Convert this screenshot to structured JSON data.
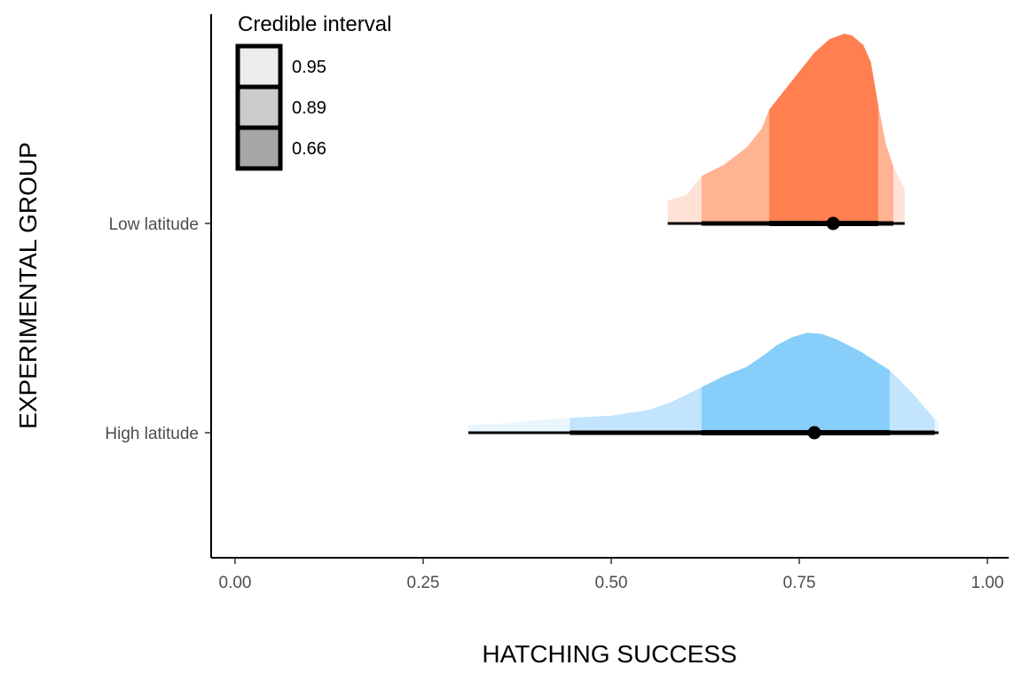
{
  "chart_data": {
    "type": "halfeye",
    "title": "",
    "xlabel": "HATCHING SUCCESS",
    "ylabel": "EXPERIMENTAL GROUP",
    "xlim": [
      -0.03,
      1.03
    ],
    "x_ticks": [
      0.0,
      0.25,
      0.5,
      0.75,
      1.0
    ],
    "x_tick_labels": [
      "0.00",
      "0.25",
      "0.50",
      "0.75",
      "1.00"
    ],
    "categories": [
      "Low latitude",
      "High latitude"
    ],
    "grid": false,
    "legend": {
      "title": "Credible interval",
      "placement": "top-left",
      "entries": [
        "0.95",
        "0.89",
        "0.66"
      ],
      "swatch_colors": [
        "#ececec",
        "#cbcbcb",
        "#a6a6a6"
      ]
    },
    "series": [
      {
        "category": "Low latitude",
        "color": "#ff7f50",
        "band_colors": [
          "#fde2d5",
          "#ffb393",
          "#ff7f50"
        ],
        "point": 0.795,
        "intervals": [
          {
            "level": "0.95",
            "low": 0.575,
            "high": 0.89
          },
          {
            "level": "0.89",
            "low": 0.62,
            "high": 0.875
          },
          {
            "level": "0.66",
            "low": 0.71,
            "high": 0.855
          }
        ],
        "density": [
          [
            0.575,
            0.12
          ],
          [
            0.6,
            0.15
          ],
          [
            0.62,
            0.25
          ],
          [
            0.65,
            0.31
          ],
          [
            0.68,
            0.4
          ],
          [
            0.7,
            0.5
          ],
          [
            0.71,
            0.6
          ],
          [
            0.73,
            0.7
          ],
          [
            0.75,
            0.8
          ],
          [
            0.77,
            0.9
          ],
          [
            0.79,
            0.97
          ],
          [
            0.81,
            1.0
          ],
          [
            0.82,
            0.99
          ],
          [
            0.835,
            0.94
          ],
          [
            0.845,
            0.85
          ],
          [
            0.855,
            0.62
          ],
          [
            0.865,
            0.42
          ],
          [
            0.875,
            0.3
          ],
          [
            0.89,
            0.18
          ]
        ]
      },
      {
        "category": "High latitude",
        "color": "#87cefa",
        "band_colors": [
          "#eaf6fe",
          "#c2e4fc",
          "#87cefa"
        ],
        "point": 0.77,
        "intervals": [
          {
            "level": "0.95",
            "low": 0.31,
            "high": 0.935
          },
          {
            "level": "0.89",
            "low": 0.445,
            "high": 0.93
          },
          {
            "level": "0.66",
            "low": 0.62,
            "high": 0.87
          }
        ],
        "density": [
          [
            0.31,
            0.07
          ],
          [
            0.36,
            0.08
          ],
          [
            0.4,
            0.11
          ],
          [
            0.445,
            0.13
          ],
          [
            0.5,
            0.15
          ],
          [
            0.55,
            0.2
          ],
          [
            0.58,
            0.27
          ],
          [
            0.62,
            0.4
          ],
          [
            0.65,
            0.5
          ],
          [
            0.68,
            0.58
          ],
          [
            0.7,
            0.67
          ],
          [
            0.72,
            0.77
          ],
          [
            0.74,
            0.84
          ],
          [
            0.76,
            0.88
          ],
          [
            0.78,
            0.87
          ],
          [
            0.8,
            0.82
          ],
          [
            0.83,
            0.72
          ],
          [
            0.87,
            0.55
          ],
          [
            0.9,
            0.35
          ],
          [
            0.93,
            0.12
          ],
          [
            0.935,
            0.1
          ]
        ]
      }
    ]
  }
}
